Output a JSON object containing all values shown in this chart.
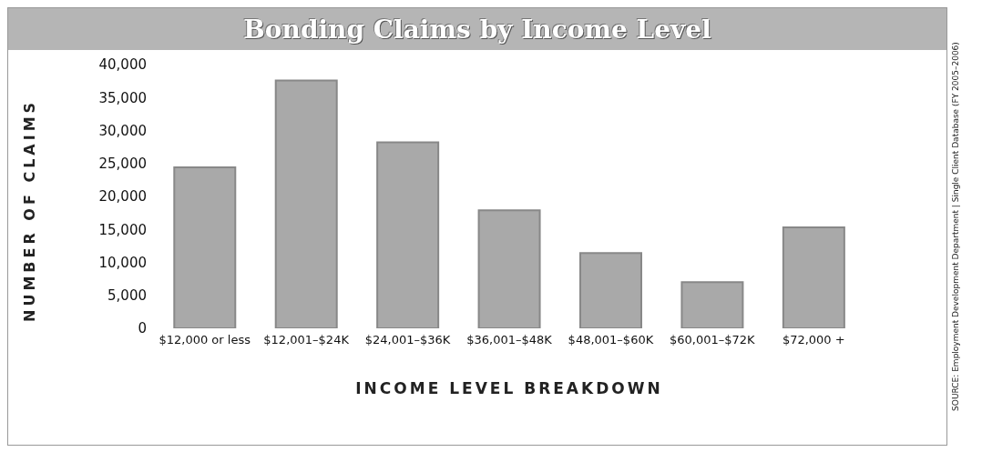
{
  "chart_data": {
    "type": "bar",
    "title": "Bonding Claims by Income Level",
    "xlabel": "INCOME LEVEL BREAKDOWN",
    "ylabel": "NUMBER OF CLAIMS",
    "categories": [
      "$12,000 or less",
      "$12,001–$24K",
      "$24,001–$36K",
      "$36,001–$48K",
      "$48,001–$60K",
      "$60,001–$72K",
      "$72,000 +"
    ],
    "values": [
      24400,
      37600,
      28200,
      17900,
      11400,
      7000,
      15300
    ],
    "color": "#a9a9a9",
    "ylim": [
      0,
      40000
    ],
    "yticks": [
      {
        "value": 0,
        "label": "0"
      },
      {
        "value": 5000,
        "label": "5,000"
      },
      {
        "value": 10000,
        "label": "10,000"
      },
      {
        "value": 15000,
        "label": "15,000"
      },
      {
        "value": 20000,
        "label": "20,000"
      },
      {
        "value": 25000,
        "label": "25,000"
      },
      {
        "value": 30000,
        "label": "30,000"
      },
      {
        "value": 35000,
        "label": "35,000"
      },
      {
        "value": 40000,
        "label": "40,000"
      }
    ],
    "grid": false,
    "legend": false,
    "annotations": [
      "SOURCE: Employment Development Department | Single Client Database (FY 2005–2006)"
    ]
  }
}
